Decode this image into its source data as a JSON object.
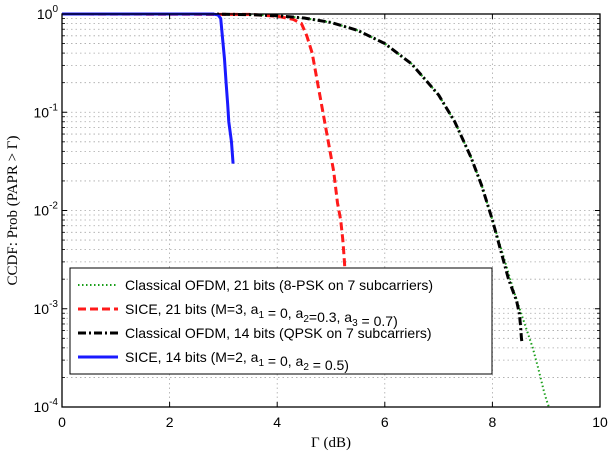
{
  "chart_data": {
    "type": "line",
    "xlabel": "Γ (dB)",
    "ylabel": "CCDF: Prob (PAPR > Γ)",
    "xlim": [
      0,
      10
    ],
    "ylim": [
      0.0001,
      1
    ],
    "yscale": "log",
    "grid": true,
    "legend_position": "lower-left",
    "x_ticks": [
      "0",
      "2",
      "4",
      "6",
      "8",
      "10"
    ],
    "y_ticks": [
      {
        "value": 1,
        "label": "10",
        "exp": "0"
      },
      {
        "value": 0.1,
        "label": "10",
        "exp": "-1"
      },
      {
        "value": 0.01,
        "label": "10",
        "exp": "-2"
      },
      {
        "value": 0.001,
        "label": "10",
        "exp": "-3"
      },
      {
        "value": 0.0001,
        "label": "10",
        "exp": "-4"
      }
    ],
    "series": [
      {
        "name": "Classical OFDM, 21 bits (8-PSK on 7 subcarriers)",
        "legend_parts": [
          {
            "t": "Classical OFDM, 21 bits (8-PSK on 7 subcarriers)"
          }
        ],
        "color": "#1a9e1a",
        "style": "dotted",
        "x": [
          0,
          2.5,
          3.0,
          3.5,
          4.0,
          4.5,
          5.0,
          5.5,
          6.0,
          6.5,
          7.0,
          7.3,
          7.6,
          7.8,
          8.0,
          8.2,
          8.4,
          8.6,
          8.75,
          8.85,
          8.95,
          9.0,
          9.05
        ],
        "y": [
          1.0,
          1.0,
          0.995,
          0.985,
          0.96,
          0.91,
          0.82,
          0.68,
          0.5,
          0.31,
          0.15,
          0.08,
          0.035,
          0.018,
          0.008,
          0.0035,
          0.0015,
          0.0007,
          0.0004,
          0.00025,
          0.00015,
          0.00012,
          0.0001
        ]
      },
      {
        "name": "SICE, 21 bits (M=3, a1 = 0, a2=0.3, a3 = 0.7)",
        "legend_parts": [
          {
            "t": "SICE, 21 bits (M=3, a"
          },
          {
            "sub": "1"
          },
          {
            "t": " = 0, a"
          },
          {
            "sub": "2"
          },
          {
            "t": "=0.3, a"
          },
          {
            "sub": "3"
          },
          {
            "t": " = 0.7)"
          }
        ],
        "color": "#ff1a1a",
        "style": "dashed",
        "x": [
          0,
          3.5,
          4.0,
          4.3,
          4.45,
          4.55,
          4.65,
          4.75,
          4.85,
          4.95,
          5.05,
          5.12,
          5.18,
          5.22,
          5.25,
          5.28,
          5.3
        ],
        "y": [
          1.0,
          0.99,
          0.95,
          0.88,
          0.8,
          0.6,
          0.4,
          0.2,
          0.1,
          0.05,
          0.025,
          0.012,
          0.008,
          0.005,
          0.003,
          0.0015,
          0.001
        ]
      },
      {
        "name": "Classical OFDM, 14 bits (QPSK on 7 subcarriers)",
        "legend_parts": [
          {
            "t": "Classical OFDM, 14 bits (QPSK on 7 subcarriers)"
          }
        ],
        "color": "#000000",
        "style": "dashdot",
        "x": [
          0,
          2.5,
          3.0,
          3.5,
          4.0,
          4.5,
          5.0,
          5.5,
          6.0,
          6.5,
          7.0,
          7.3,
          7.6,
          7.8,
          8.0,
          8.15,
          8.3,
          8.45,
          8.5,
          8.52,
          8.54,
          8.55
        ],
        "y": [
          1.0,
          1.0,
          0.995,
          0.985,
          0.96,
          0.91,
          0.82,
          0.68,
          0.5,
          0.31,
          0.15,
          0.08,
          0.035,
          0.018,
          0.008,
          0.004,
          0.002,
          0.0012,
          0.0009,
          0.0007,
          0.0005,
          0.00045
        ]
      },
      {
        "name": "SICE, 14 bits (M=2, a1 = 0, a2 = 0.5)",
        "legend_parts": [
          {
            "t": "SICE, 14 bits (M=2, a"
          },
          {
            "sub": "1"
          },
          {
            "t": " = 0, a"
          },
          {
            "sub": "2"
          },
          {
            "t": " = 0.5)"
          }
        ],
        "color": "#1a1aff",
        "style": "solid",
        "x": [
          0,
          2.8,
          2.9,
          2.95,
          2.98,
          3.02,
          3.05,
          3.08,
          3.1,
          3.15,
          3.18
        ],
        "y": [
          1.0,
          1.0,
          0.98,
          0.9,
          0.6,
          0.35,
          0.2,
          0.12,
          0.08,
          0.05,
          0.03
        ]
      }
    ]
  }
}
